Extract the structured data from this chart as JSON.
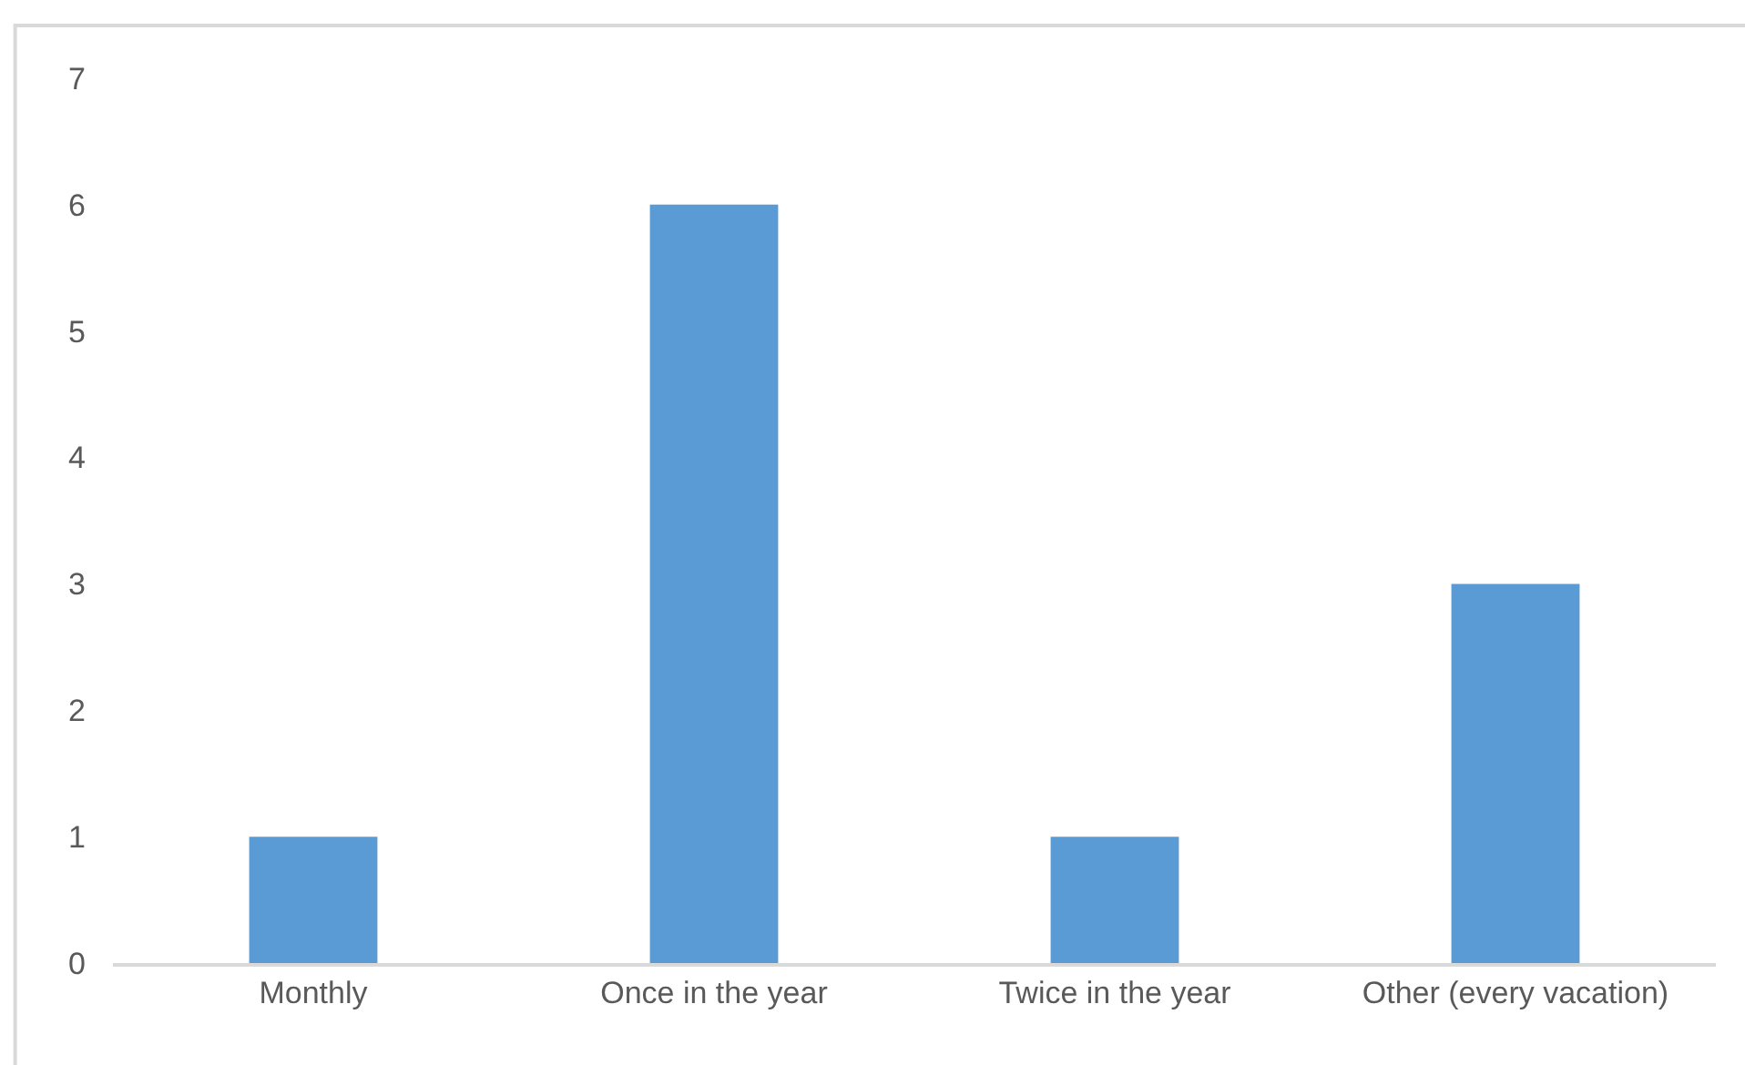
{
  "chart_data": {
    "type": "bar",
    "categories": [
      "Monthly",
      "Once in the year",
      "Twice in the year",
      "Other (every vacation)"
    ],
    "values": [
      1,
      6,
      1,
      3
    ],
    "color": "#5b9bd5",
    "ylim": [
      0,
      7
    ],
    "yticks": [
      0,
      1,
      2,
      3,
      4,
      5,
      6,
      7
    ]
  }
}
